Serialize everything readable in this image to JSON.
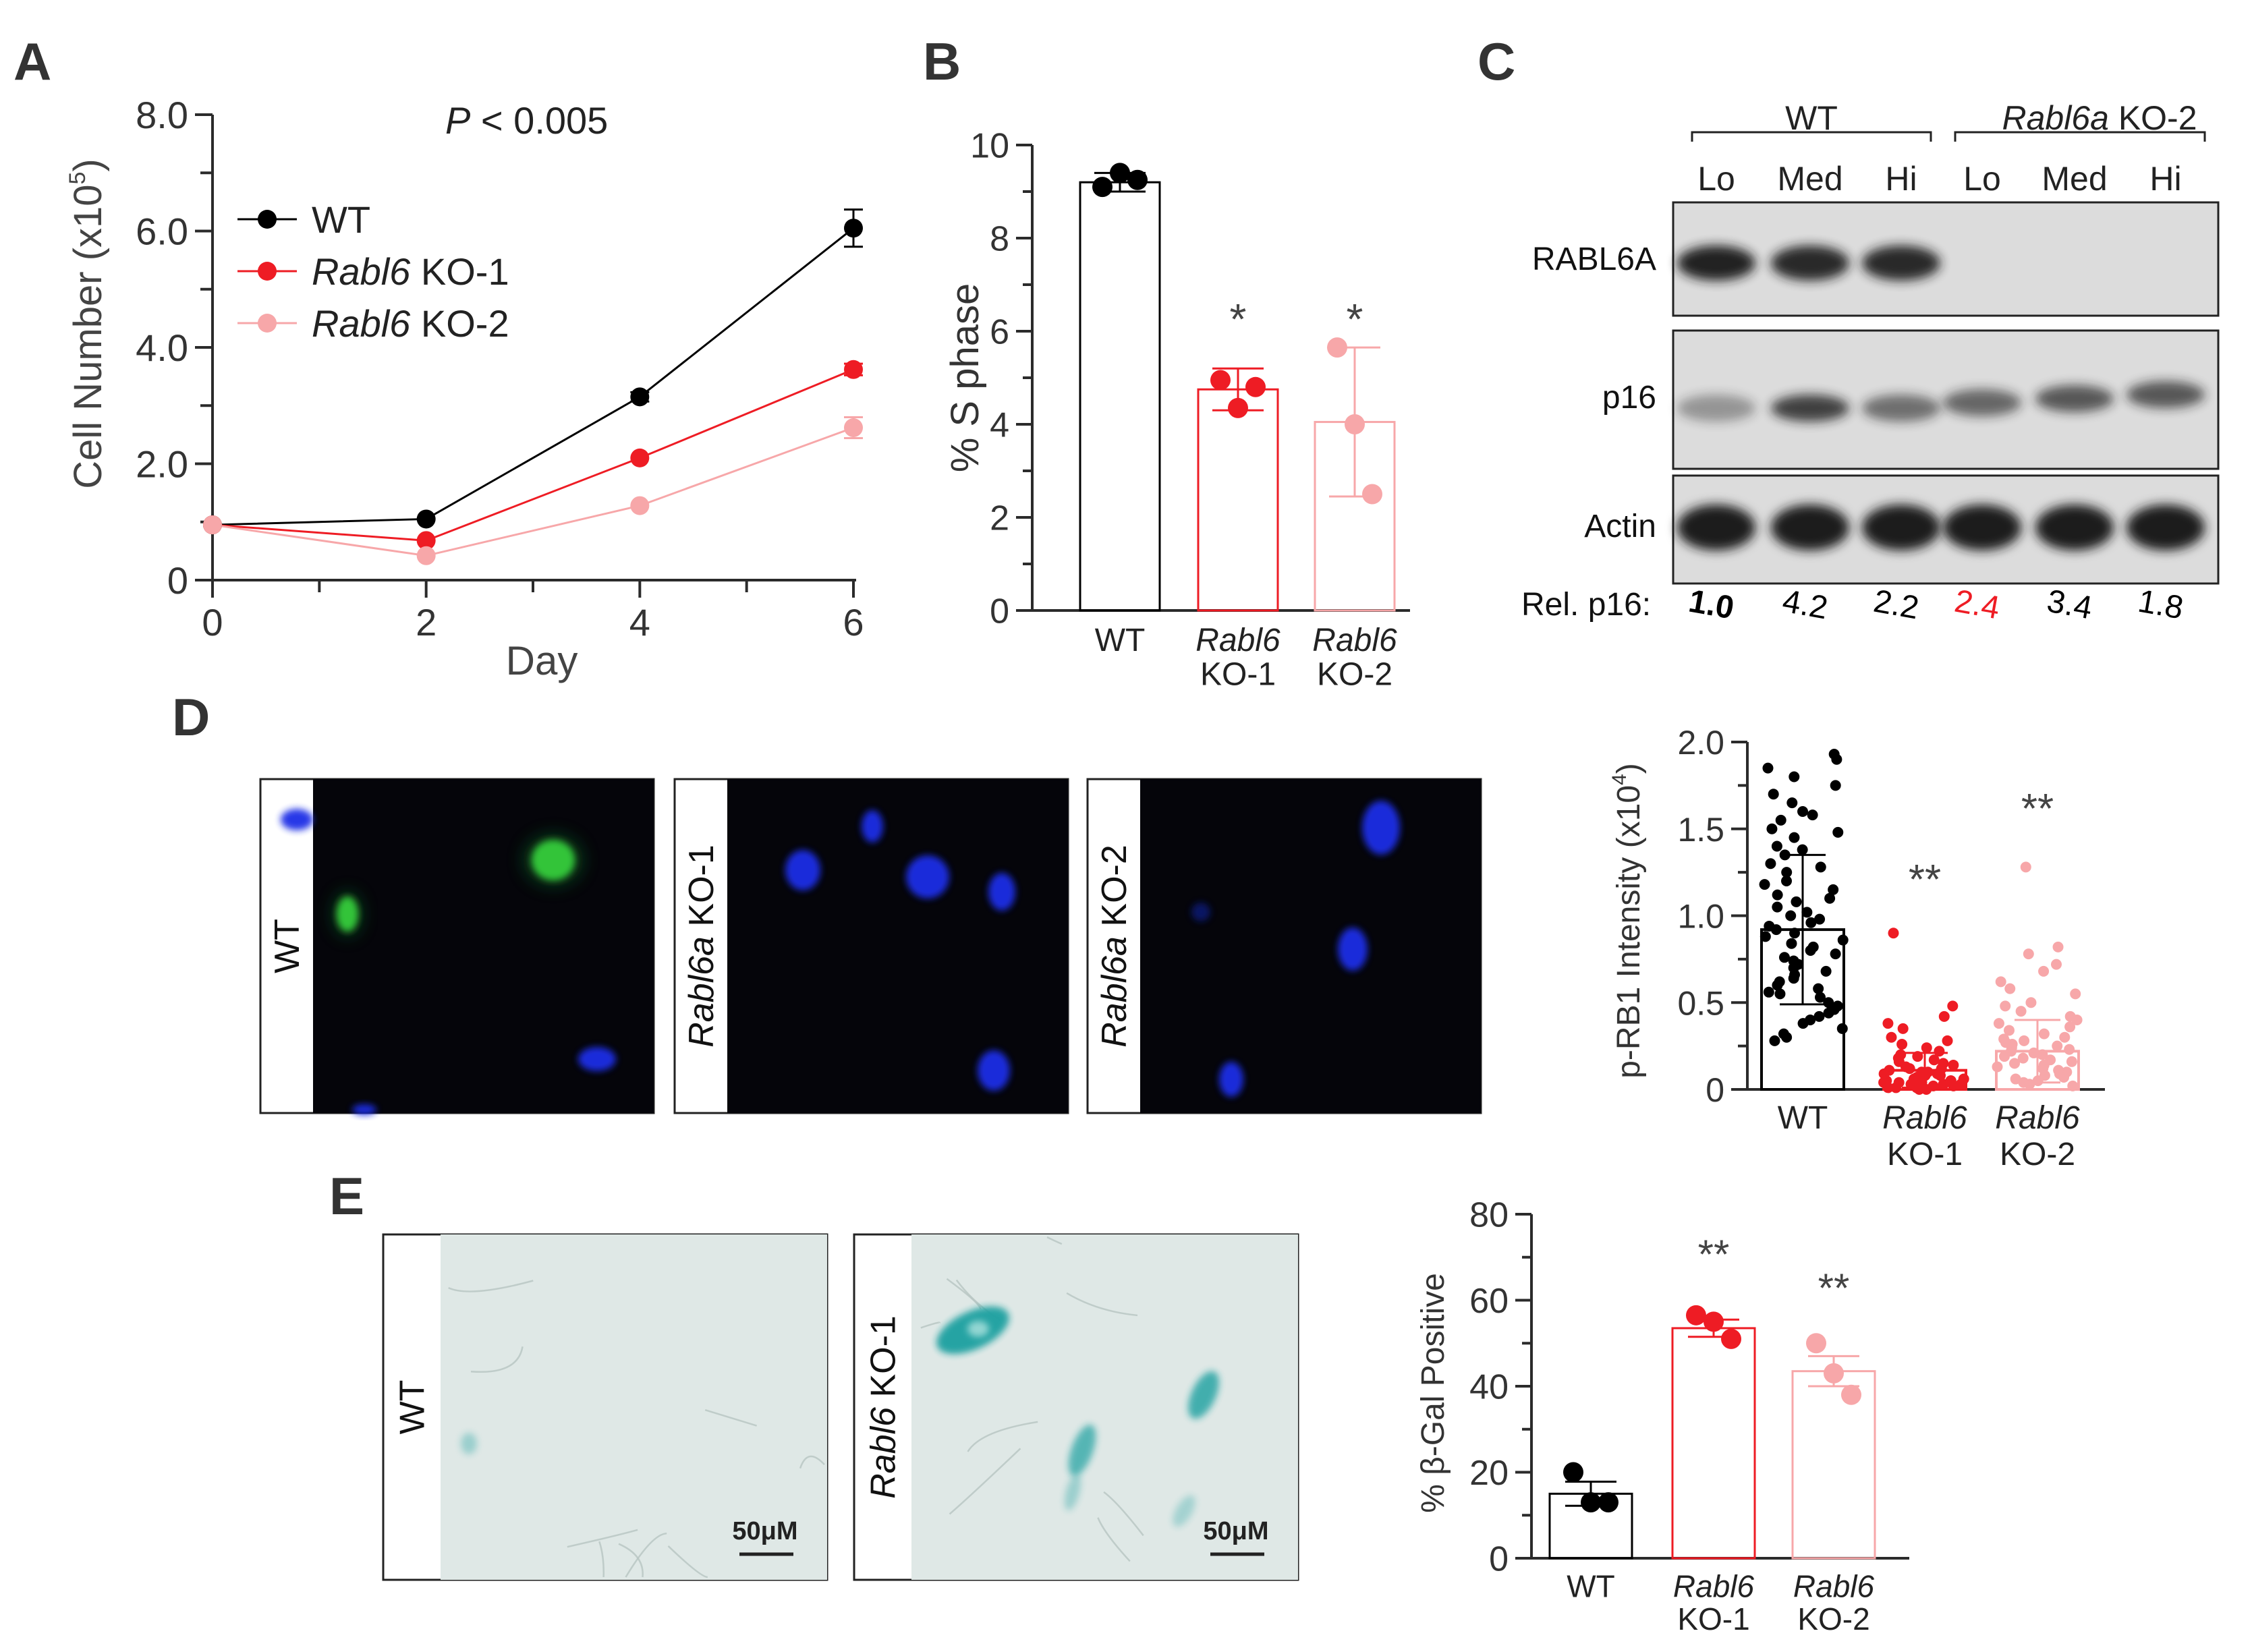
{
  "colors": {
    "wt": "#000000",
    "ko1": "#ee1c24",
    "ko2": "#f7a7a9",
    "axis": "#2b2b2b",
    "text": "#333333",
    "blot_bg": "#dcdcdc",
    "band": "#1a1a1a",
    "fluor_bg": "#05050a",
    "nucleus_blue": "#1a2fe6",
    "nucleus_green": "#37d43c",
    "bright_field": "#dfe8e6",
    "xgal_stain": "#1aa0a0"
  },
  "panels": {
    "A": "A",
    "B": "B",
    "C": "C",
    "D": "D",
    "E": "E"
  },
  "chart_data": [
    {
      "panel": "A",
      "type": "line",
      "annotation": {
        "p_prefix": "P",
        "p_rest": " < 0.005"
      },
      "xlabel": "Day",
      "ylabel": "Cell Number (x10",
      "ylabel_exp": "5",
      "ylabel_close": ")",
      "x": [
        0,
        2,
        4,
        6
      ],
      "xlim": [
        0,
        6
      ],
      "ylim": [
        0,
        8
      ],
      "xticks": [
        "0",
        "2",
        "4",
        "6"
      ],
      "yticks": [
        "0",
        "2.0",
        "4.0",
        "6.0",
        "8.0"
      ],
      "legend_position": "top-left",
      "series": [
        {
          "name_italic": "",
          "name_rest": "WT",
          "color": "#000000",
          "values": [
            0.95,
            1.05,
            3.15,
            6.05
          ],
          "errors": [
            0.03,
            0.05,
            0.08,
            0.32
          ]
        },
        {
          "name_italic": "Rabl6",
          "name_rest": " KO-1",
          "color": "#ee1c24",
          "values": [
            0.95,
            0.68,
            2.1,
            3.62
          ],
          "errors": [
            0.03,
            0.05,
            0.06,
            0.1
          ]
        },
        {
          "name_italic": "Rabl6",
          "name_rest": " KO-2",
          "color": "#f7a7a9",
          "values": [
            0.95,
            0.42,
            1.28,
            2.62
          ],
          "errors": [
            0.03,
            0.05,
            0.06,
            0.18
          ]
        }
      ]
    },
    {
      "panel": "B",
      "type": "bar",
      "ylabel": "% S phase",
      "ylim": [
        0,
        10
      ],
      "yticks": [
        "0",
        "2",
        "4",
        "6",
        "8",
        "10"
      ],
      "categories": [
        {
          "line1_italic": "",
          "line1": "WT",
          "line2": ""
        },
        {
          "line1_italic": "Rabl6",
          "line1": "",
          "line2": "KO-1"
        },
        {
          "line1_italic": "Rabl6",
          "line1": "",
          "line2": "KO-2"
        }
      ],
      "colors": [
        "#000000",
        "#ee1c24",
        "#f7a7a9"
      ],
      "values": [
        9.2,
        4.75,
        4.05
      ],
      "errors": [
        0.2,
        0.45,
        1.6
      ],
      "points": [
        [
          9.1,
          9.4,
          9.25
        ],
        [
          4.95,
          4.35,
          4.8
        ],
        [
          5.65,
          4.0,
          2.5
        ]
      ],
      "significance": [
        "",
        "*",
        "*"
      ]
    },
    {
      "panel": "D",
      "type": "scatter",
      "ylabel": "p-RB1 Intensity (x10",
      "ylabel_exp": "4",
      "ylabel_close": ")",
      "ylim": [
        0,
        2.0
      ],
      "yticks": [
        "0",
        "0.5",
        "1.0",
        "1.5",
        "2.0"
      ],
      "categories": [
        {
          "line1_italic": "",
          "line1": "WT",
          "line2": ""
        },
        {
          "line1_italic": "Rabl6",
          "line1": "",
          "line2": "KO-1"
        },
        {
          "line1_italic": "Rabl6",
          "line1": "",
          "line2": "KO-2"
        }
      ],
      "colors": [
        "#000000",
        "#ee1c24",
        "#f7a7a9"
      ],
      "means": [
        0.92,
        0.11,
        0.22
      ],
      "sd": [
        0.43,
        0.1,
        0.18
      ],
      "points": [
        [
          1.93,
          1.9,
          1.85,
          1.8,
          1.75,
          1.7,
          1.65,
          1.6,
          1.58,
          1.55,
          1.5,
          1.48,
          1.45,
          1.4,
          1.38,
          1.35,
          1.3,
          1.28,
          1.25,
          1.2,
          1.18,
          1.15,
          1.12,
          1.1,
          1.08,
          1.05,
          1.02,
          1.0,
          0.98,
          0.96,
          0.94,
          0.92,
          0.9,
          0.88,
          0.86,
          0.84,
          0.82,
          0.8,
          0.78,
          0.76,
          0.74,
          0.72,
          0.7,
          0.68,
          0.66,
          0.64,
          0.62,
          0.6,
          0.58,
          0.56,
          0.55,
          0.53,
          0.5,
          0.48,
          0.46,
          0.44,
          0.42,
          0.4,
          0.38,
          0.35,
          0.32,
          0.3,
          0.28
        ],
        [
          0.9,
          0.48,
          0.42,
          0.38,
          0.35,
          0.3,
          0.28,
          0.26,
          0.24,
          0.22,
          0.2,
          0.19,
          0.18,
          0.17,
          0.16,
          0.15,
          0.14,
          0.13,
          0.12,
          0.12,
          0.11,
          0.1,
          0.1,
          0.09,
          0.09,
          0.08,
          0.08,
          0.07,
          0.07,
          0.06,
          0.06,
          0.05,
          0.05,
          0.05,
          0.04,
          0.04,
          0.04,
          0.03,
          0.03,
          0.03,
          0.02,
          0.02,
          0.02,
          0.01,
          0.01,
          0.01,
          0.0,
          0.0
        ],
        [
          1.28,
          0.82,
          0.78,
          0.72,
          0.68,
          0.62,
          0.58,
          0.55,
          0.5,
          0.48,
          0.45,
          0.42,
          0.4,
          0.38,
          0.36,
          0.34,
          0.32,
          0.3,
          0.29,
          0.28,
          0.27,
          0.26,
          0.25,
          0.24,
          0.23,
          0.22,
          0.21,
          0.2,
          0.19,
          0.18,
          0.17,
          0.16,
          0.15,
          0.14,
          0.13,
          0.12,
          0.11,
          0.1,
          0.09,
          0.08,
          0.07,
          0.06,
          0.05,
          0.04,
          0.03,
          0.02
        ]
      ],
      "significance": [
        "",
        "**",
        "**"
      ]
    },
    {
      "panel": "E",
      "type": "bar",
      "ylabel": "% β-Gal Positive",
      "ylim": [
        0,
        80
      ],
      "yticks": [
        "0",
        "20",
        "40",
        "60",
        "80"
      ],
      "categories": [
        {
          "line1_italic": "",
          "line1": "WT",
          "line2": ""
        },
        {
          "line1_italic": "Rabl6",
          "line1": "",
          "line2": "KO-1"
        },
        {
          "line1_italic": "Rabl6",
          "line1": "",
          "line2": "KO-2"
        }
      ],
      "colors": [
        "#000000",
        "#ee1c24",
        "#f7a7a9"
      ],
      "values": [
        15.0,
        53.5,
        43.5
      ],
      "errors": [
        2.8,
        2.0,
        3.5
      ],
      "points": [
        [
          20.0,
          13.0,
          13.0
        ],
        [
          56.5,
          55.0,
          51.0
        ],
        [
          50.0,
          43.0,
          38.0
        ]
      ],
      "significance": [
        "",
        "**",
        "**"
      ]
    }
  ],
  "western": {
    "group_wt": "WT",
    "group_ko_italic": "Rabl6a",
    "group_ko_rest": " KO-2",
    "lanes": [
      "Lo",
      "Med",
      "Hi",
      "Lo",
      "Med",
      "Hi"
    ],
    "rows": [
      "RABL6A",
      "p16",
      "Actin"
    ],
    "band_strength": {
      "RABL6A": [
        0.9,
        0.85,
        0.85,
        0,
        0,
        0
      ],
      "p16": [
        0.15,
        0.7,
        0.4,
        0.45,
        0.55,
        0.55
      ],
      "Actin": [
        0.95,
        0.95,
        0.95,
        0.95,
        0.95,
        0.95
      ]
    },
    "rel_label": "Rel. p16:",
    "rel_values": [
      "1.0",
      "4.2",
      "2.2",
      "2.4",
      "3.4",
      "1.8"
    ],
    "rel_colors": [
      "#000000",
      "#000000",
      "#000000",
      "#ee1c24",
      "#000000",
      "#000000"
    ]
  },
  "images_d": [
    {
      "label_italic": "",
      "label_rest": "WT"
    },
    {
      "label_italic": "Rabl6a",
      "label_rest": " KO-1"
    },
    {
      "label_italic": "Rabl6a",
      "label_rest": " KO-2"
    }
  ],
  "images_e": [
    {
      "label_italic": "",
      "label_rest": "WT",
      "scale": "50μM"
    },
    {
      "label_italic": "Rabl6",
      "label_rest": " KO-1",
      "scale": "50μM"
    }
  ]
}
